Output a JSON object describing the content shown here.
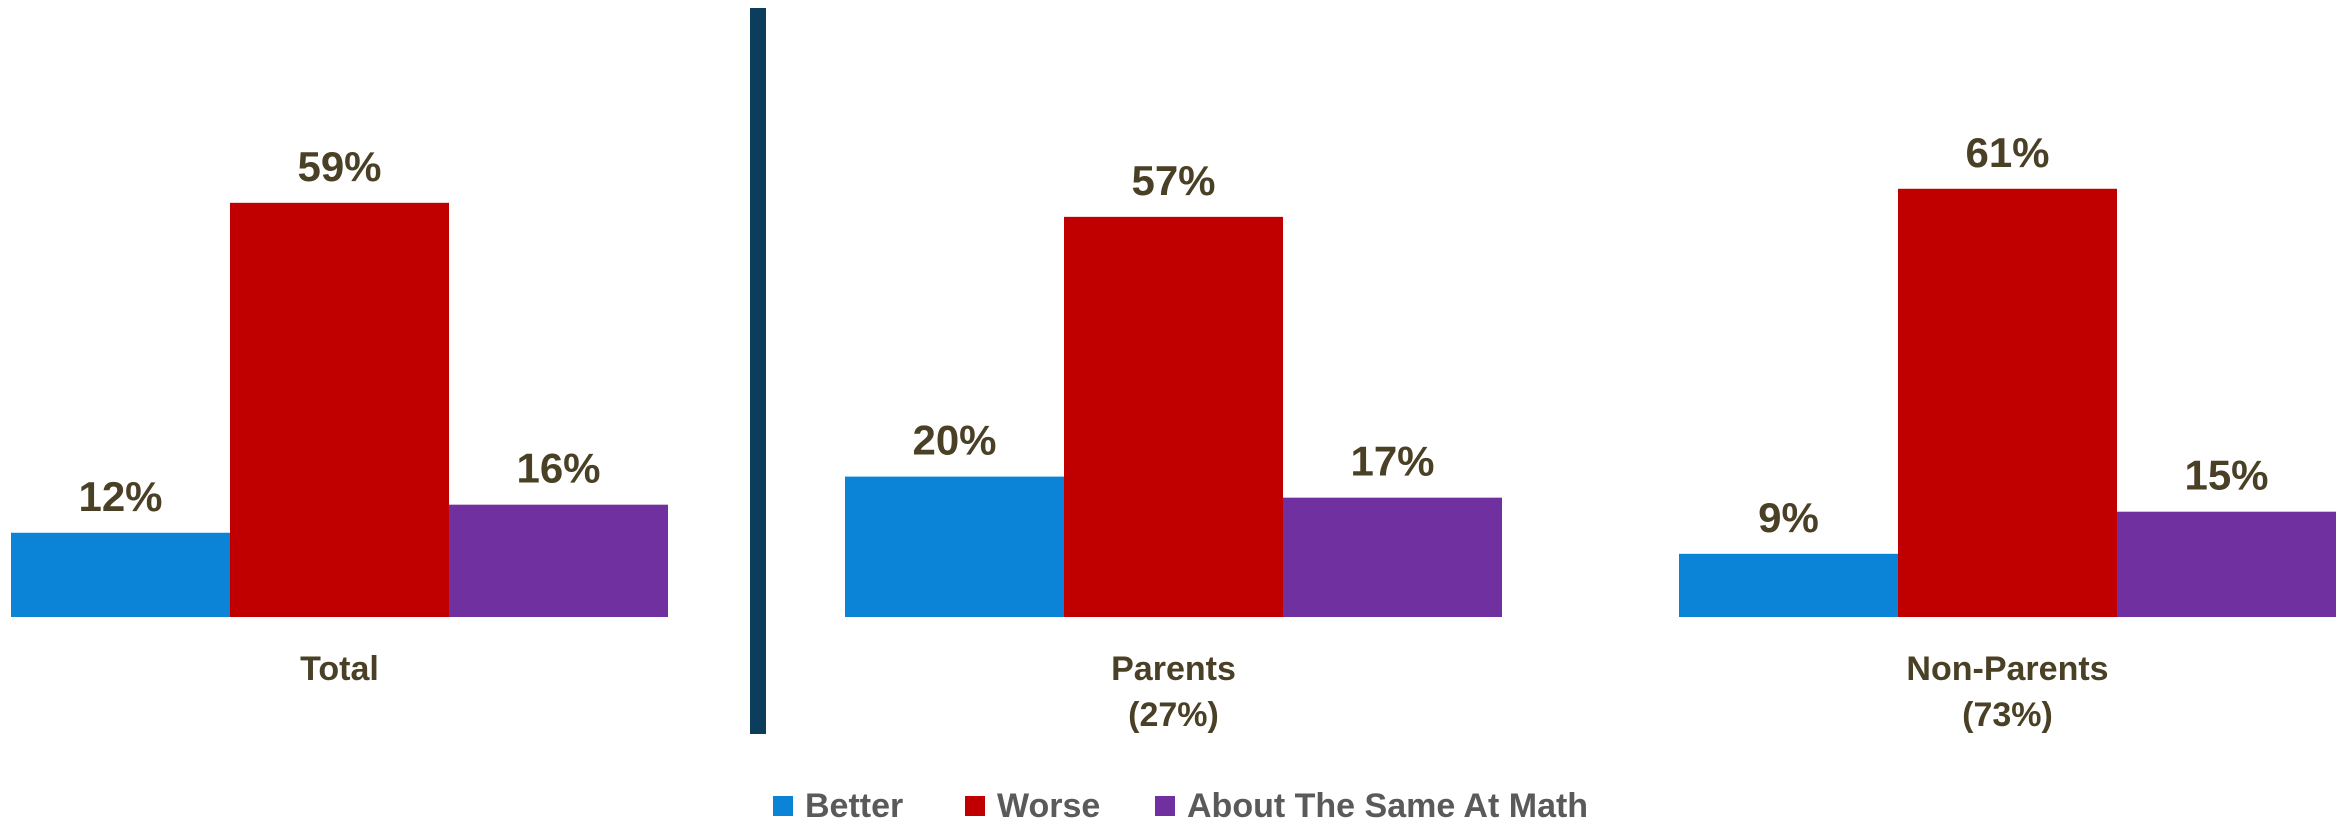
{
  "chart_data": {
    "type": "bar",
    "groups": [
      {
        "label": "Total",
        "sublabel": "",
        "values": [
          12,
          59,
          16
        ]
      },
      {
        "label": "Parents",
        "sublabel": "(27%)",
        "values": [
          20,
          57,
          17
        ]
      },
      {
        "label": "Non-Parents",
        "sublabel": "(73%)",
        "values": [
          9,
          61,
          15
        ]
      }
    ],
    "series": [
      {
        "name": "Better",
        "color": "#0b84d8"
      },
      {
        "name": "Worse",
        "color": "#c00000"
      },
      {
        "name": "About The Same At Math",
        "color": "#7030a0"
      }
    ],
    "value_suffix": "%",
    "legend_position": "bottom",
    "divider_color": "#0d3d5c",
    "label_color": "#4a4026"
  }
}
